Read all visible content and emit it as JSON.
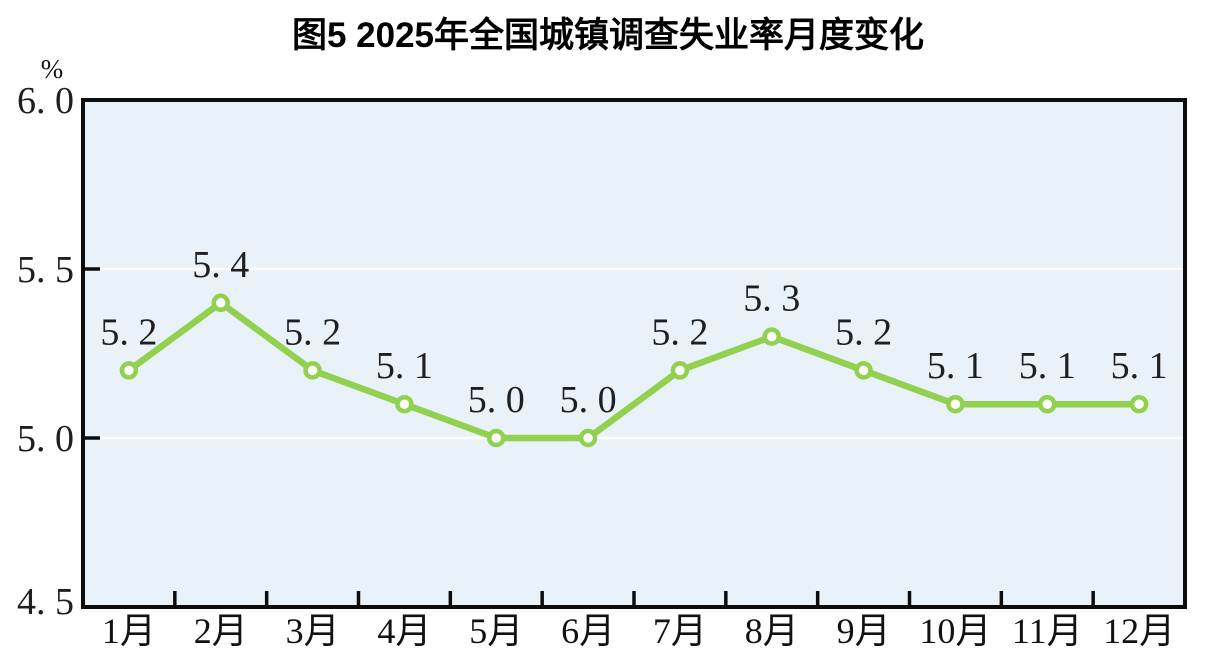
{
  "chart_data": {
    "type": "line",
    "title": "图5  2025年全国城镇调查失业率月度变化",
    "unit": "%",
    "categories": [
      "1月",
      "2月",
      "3月",
      "4月",
      "5月",
      "6月",
      "7月",
      "8月",
      "9月",
      "10月",
      "11月",
      "12月"
    ],
    "series": [
      {
        "name": "全国城镇调查失业率",
        "values": [
          5.2,
          5.4,
          5.2,
          5.1,
          5.0,
          5.0,
          5.2,
          5.3,
          5.2,
          5.1,
          5.1,
          5.1
        ]
      }
    ],
    "point_labels": [
      "5. 2",
      "5. 4",
      "5. 2",
      "5. 1",
      "5. 0",
      "5. 0",
      "5. 2",
      "5. 3",
      "5. 2",
      "5. 1",
      "5. 1",
      "5. 1"
    ],
    "ylim": [
      4.5,
      6.0
    ],
    "y_ticks": [
      4.5,
      5.0,
      5.5,
      6.0
    ],
    "y_tick_labels": [
      "4. 5",
      "5. 0",
      "5. 5",
      "6. 0"
    ],
    "grid": "horizontal-inner-only",
    "legend": "none",
    "colors": {
      "line": "#92d050",
      "marker_fill": "#ffffff",
      "marker_stroke": "#92d050",
      "plot_background": "#e9f2f8",
      "gridline": "#ffffff",
      "axis": "#0d0d0d",
      "label": "#1f1f1f",
      "title": "#000000"
    }
  }
}
